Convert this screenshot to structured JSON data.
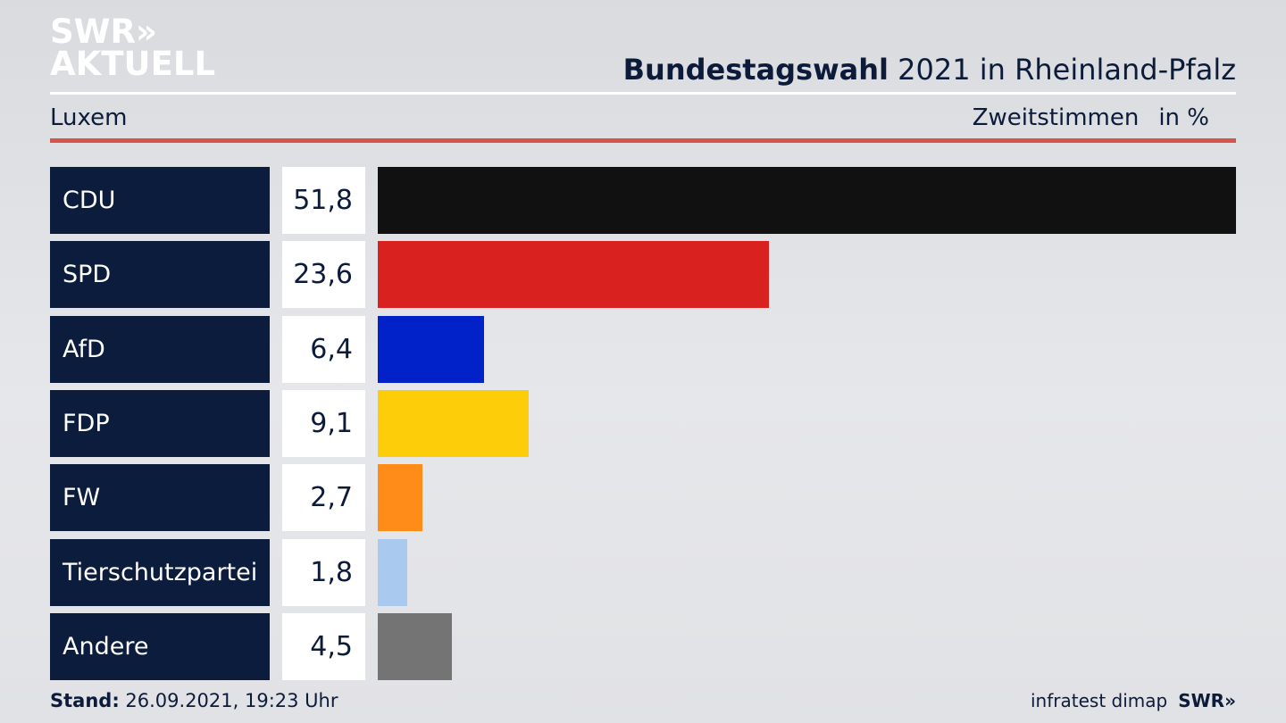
{
  "logo": {
    "line1": "SWR»",
    "line2": "AKTUELL"
  },
  "header": {
    "title_bold": "Bundestagswahl",
    "title_rest": " 2021 in Rheinland-Pfalz",
    "location": "Luxem",
    "vote_type": "Zweitstimmen",
    "unit": "in %"
  },
  "colors": {
    "name_bg": "#0c1c3d",
    "rule_red": "#d6554a"
  },
  "chart_data": {
    "type": "bar",
    "orientation": "horizontal",
    "categories": [
      "CDU",
      "SPD",
      "AfD",
      "FDP",
      "FW",
      "Tierschutzpartei",
      "Andere"
    ],
    "values": [
      51.8,
      23.6,
      6.4,
      9.1,
      2.7,
      1.8,
      4.5
    ],
    "value_labels": [
      "51,8",
      "23,6",
      "6,4",
      "9,1",
      "2,7",
      "1,8",
      "4,5"
    ],
    "colors": [
      "#111111",
      "#d9211f",
      "#0022c8",
      "#fecd0a",
      "#ff8c19",
      "#a9c9ef",
      "#747474"
    ],
    "xlim": [
      0,
      51.8
    ],
    "grid": false,
    "legend": "none"
  },
  "footer": {
    "stand_label": "Stand:",
    "stand_value": " 26.09.2021, 19:23 Uhr",
    "source": "infratest dimap",
    "brand": "SWR»"
  }
}
